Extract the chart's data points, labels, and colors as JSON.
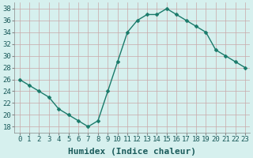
{
  "x": [
    0,
    1,
    2,
    3,
    4,
    5,
    6,
    7,
    8,
    9,
    10,
    11,
    12,
    13,
    14,
    15,
    16,
    17,
    18,
    19,
    20,
    21,
    22,
    23
  ],
  "y": [
    26,
    25,
    24,
    23,
    21,
    20,
    19,
    18,
    19,
    24,
    29,
    34,
    36,
    37,
    37,
    38,
    37,
    36,
    35,
    34,
    31,
    30,
    29,
    28
  ],
  "line_color": "#1a7a6a",
  "marker_color": "#1a7a6a",
  "bg_color": "#d6f0ee",
  "plot_bg_color": "#d6f0ee",
  "grid_color": "#c8ddd8",
  "xlabel": "Humidex (Indice chaleur)",
  "ylim": [
    17,
    39
  ],
  "xlim": [
    -0.5,
    23.5
  ],
  "yticks": [
    18,
    20,
    22,
    24,
    26,
    28,
    30,
    32,
    34,
    36,
    38
  ],
  "xticks": [
    0,
    1,
    2,
    3,
    4,
    5,
    6,
    7,
    8,
    9,
    10,
    11,
    12,
    13,
    14,
    15,
    16,
    17,
    18,
    19,
    20,
    21,
    22,
    23
  ],
  "xtick_labels": [
    "0",
    "1",
    "2",
    "3",
    "4",
    "5",
    "6",
    "7",
    "8",
    "9",
    "10",
    "11",
    "12",
    "13",
    "14",
    "15",
    "16",
    "17",
    "18",
    "19",
    "20",
    "21",
    "22",
    "23"
  ],
  "xlabel_fontsize": 8,
  "tick_fontsize": 6.5,
  "line_width": 1.0,
  "marker_size": 4
}
